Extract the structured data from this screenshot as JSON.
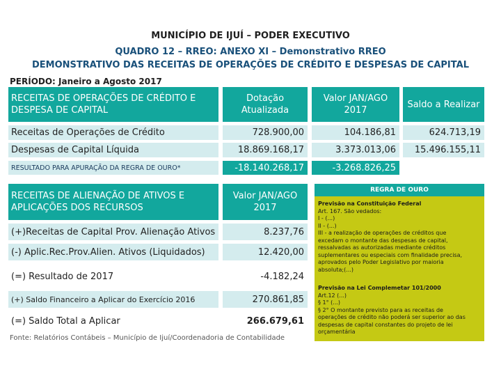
{
  "header": {
    "line1": "MUNICÍPIO DE IJUÍ – PODER EXECUTIVO",
    "line2": "QUADRO 12 – RREO: ANEXO XI – Demonstrativo RREO",
    "line3": "DEMONSTRATIVO DAS RECEITAS DE OPERAÇÕES DE CRÉDITO E DESPESAS DE CAPITAL"
  },
  "periodo": "PERÍODO: Janeiro a Agosto 2017",
  "table1": {
    "headers": [
      "RECEITAS DE OPERAÇÕES DE CRÉDITO E DESPESA DE CAPITAL",
      "Dotação Atualizada",
      "Valor JAN/AGO 2017",
      "Saldo a Realizar"
    ],
    "rows": [
      {
        "label": "Receitas de Operações de Crédito",
        "dotacao": "728.900,00",
        "valor": "104.186,81",
        "saldo": "624.713,19"
      },
      {
        "label": "Despesas de Capital Líquida",
        "dotacao": "18.869.168,17",
        "valor": "3.373.013,06",
        "saldo": "15.496.155,11"
      }
    ],
    "result": {
      "label": "RESULTADO PARA APURAÇÃO DA REGRA DE OURO*",
      "dotacao": "-18.140.268,17",
      "valor": "-3.268.826,25"
    }
  },
  "table2": {
    "headers": [
      "RECEITAS DE ALIENAÇÃO DE ATIVOS E APLICAÇÕES DOS RECURSOS",
      "Valor JAN/AGO 2017"
    ],
    "rows": [
      {
        "label": "(+)Receitas  de Capital Prov. Alienação Ativos",
        "valor": "8.237,76"
      },
      {
        "label": "(-) Aplic.Rec.Prov.Alien. Ativos (Liquidados)",
        "valor": "12.420,00"
      },
      {
        "label": "(=) Resultado de 2017",
        "valor": "-4.182,24"
      },
      {
        "label": "(+) Saldo Financeiro a Aplicar do Exercício 2016",
        "valor": "270.861,85"
      },
      {
        "label": "(=) Saldo Total a Aplicar",
        "valor": "266.679,61"
      }
    ]
  },
  "regra": {
    "title": "REGRA DE OURO",
    "lines": [
      "Previsão na Constituição Federal",
      "Art. 167. São vedados:",
      "I - (...)",
      "II - (...)",
      "III - a realização de operações de créditos que",
      "excedam o montante das despesas de capital,",
      "ressalvadas as autorizadas mediante créditos",
      "suplementares ou especiais com finalidade precisa,",
      "aprovados pelo Poder Legislativo por maioria",
      "absoluta;(...)",
      "Previsão na Lei Complemetar 101/2000",
      "Art.12 (...)",
      "§ 1° (...)",
      "§ 2° O montante previsto para as receitas de",
      "operações de crédito não poderá ser superior ao das",
      "despesas de capital constantes do projeto de lei",
      "orçamentária"
    ]
  },
  "fonte": "Fonte: Relatórios Contábeis – Município de Ijuí/Coordenadoria de Contabilidade",
  "colors": {
    "teal": "#12a79d",
    "light": "#d4ecee",
    "gold": "#c5c914",
    "navy": "#19507a"
  }
}
